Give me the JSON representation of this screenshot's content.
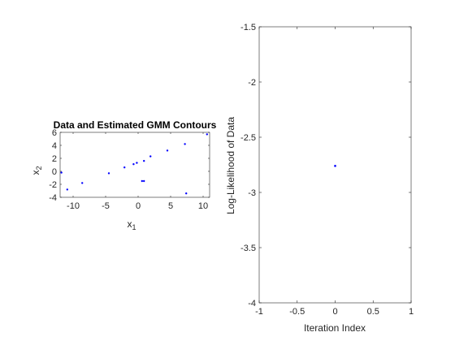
{
  "chart_data": [
    {
      "type": "scatter",
      "title": "Data and Estimated GMM Contours",
      "xlabel": "x",
      "xlabel_sub": "1",
      "ylabel": "x",
      "ylabel_sub": "2",
      "xlim": [
        -12,
        11
      ],
      "ylim": [
        -4,
        6
      ],
      "xticks": [
        -10,
        -5,
        0,
        5,
        10
      ],
      "yticks": [
        -4,
        -2,
        0,
        2,
        4,
        6
      ],
      "xtick_labels": [
        "-10",
        "-5",
        "0",
        "5",
        "10"
      ],
      "ytick_labels": [
        "-4",
        "-2",
        "0",
        "2",
        "4",
        "6"
      ],
      "point_color": "#0000ff",
      "points": [
        {
          "x": -11.8,
          "y": -0.2
        },
        {
          "x": -10.9,
          "y": -2.8
        },
        {
          "x": -8.6,
          "y": -1.8
        },
        {
          "x": -4.5,
          "y": -0.3
        },
        {
          "x": -2.1,
          "y": 0.6
        },
        {
          "x": -0.7,
          "y": 1.1
        },
        {
          "x": -0.2,
          "y": 1.3
        },
        {
          "x": 0.6,
          "y": -1.5
        },
        {
          "x": 0.9,
          "y": -1.5
        },
        {
          "x": 0.9,
          "y": 1.6
        },
        {
          "x": 1.9,
          "y": 2.3
        },
        {
          "x": 4.5,
          "y": 3.2
        },
        {
          "x": 7.2,
          "y": 4.2
        },
        {
          "x": 7.4,
          "y": -3.4
        },
        {
          "x": 10.6,
          "y": 5.7
        }
      ]
    },
    {
      "type": "scatter",
      "title": "",
      "xlabel": "Iteration Index",
      "ylabel": "Log-Likelihood of Data",
      "xlim": [
        -1,
        1
      ],
      "ylim": [
        -4,
        -1.5
      ],
      "xticks": [
        -1,
        -0.5,
        0,
        0.5,
        1
      ],
      "yticks": [
        -4,
        -3.5,
        -3,
        -2.5,
        -2,
        -1.5
      ],
      "xtick_labels": [
        "-1",
        "-0.5",
        "0",
        "0.5",
        "1"
      ],
      "ytick_labels": [
        "-4",
        "-3.5",
        "-3",
        "-2.5",
        "-2",
        "-1.5"
      ],
      "point_color": "#0000ff",
      "points": [
        {
          "x": 0,
          "y": -2.76
        }
      ]
    }
  ]
}
